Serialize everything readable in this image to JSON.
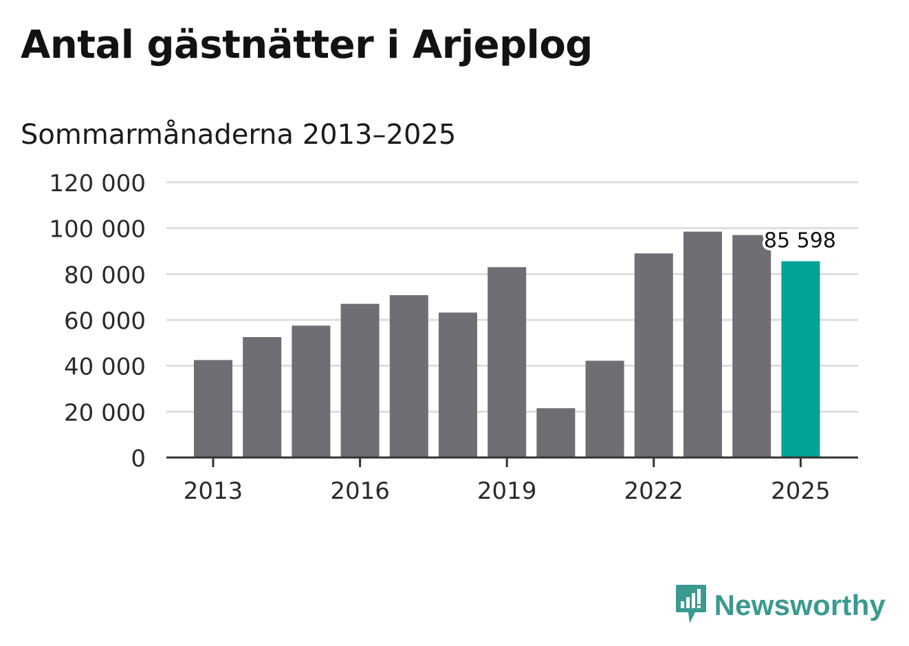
{
  "title": "Antal gästnätter i Arjeplog",
  "subtitle": "Sommarmånaderna 2013–2025",
  "brand": {
    "name": "Newsworthy",
    "icon": "newsworthy-logo-icon",
    "color": "#3a9a8f"
  },
  "chart_data": {
    "type": "bar",
    "title": "Antal gästnätter i Arjeplog",
    "subtitle": "Sommarmånaderna 2013–2025",
    "xlabel": "",
    "ylabel": "",
    "ylim": [
      0,
      120000
    ],
    "yticks": [
      0,
      20000,
      40000,
      60000,
      80000,
      100000,
      120000
    ],
    "ytick_labels": [
      "0",
      "20 000",
      "40 000",
      "60 000",
      "80 000",
      "100 000",
      "120 000"
    ],
    "categories": [
      "2013",
      "2014",
      "2015",
      "2016",
      "2017",
      "2018",
      "2019",
      "2020",
      "2021",
      "2022",
      "2023",
      "2024",
      "2025"
    ],
    "xtick_labels": [
      "2013",
      "2016",
      "2019",
      "2022",
      "2025"
    ],
    "values": [
      42500,
      52500,
      57500,
      67000,
      70800,
      63200,
      83000,
      21500,
      42200,
      89000,
      98500,
      97000,
      85598
    ],
    "highlight_index": 12,
    "highlight_label": "85 598",
    "colors": {
      "bar": "#6f6e74",
      "highlight": "#00a398",
      "grid": "#dddddd",
      "axis": "#333333"
    },
    "grid": true,
    "legend": "none"
  }
}
